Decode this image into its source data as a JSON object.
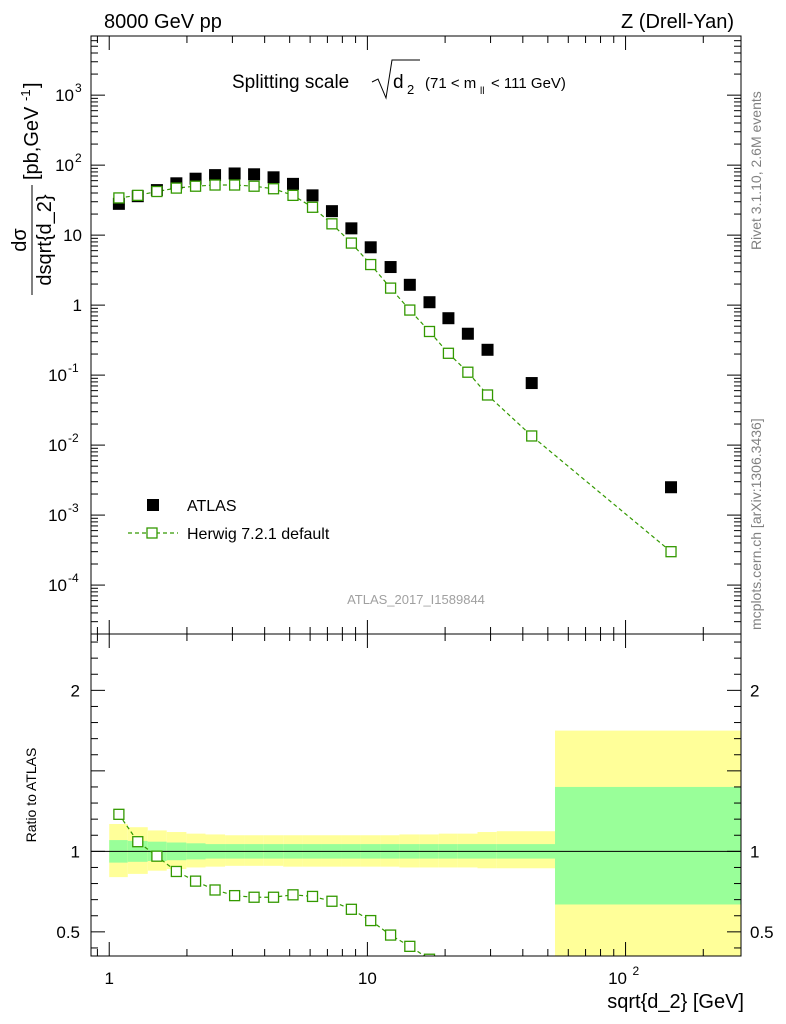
{
  "header": {
    "left": "8000 GeV pp",
    "right": "Z (Drell-Yan)"
  },
  "side_text": {
    "top": "Rivet 3.1.10,  2.6M events",
    "bottom": "mcplots.cern.ch [arXiv:1306.3436]"
  },
  "watermark": "ATLAS_2017_I1589844",
  "legend": {
    "data_label": "ATLAS",
    "mc_label": "Herwig 7.2.1 default"
  },
  "title": {
    "main": "Splitting scale",
    "sub": "2",
    "range_prefix": "(71 < m",
    "range_sub": "ll",
    "range_suffix": "< 111 GeV)"
  },
  "top_ylabel": {
    "num": "dσ",
    "den": "dsqrt{d_2}",
    "units": "[pb,GeV",
    "units_sup": "-1",
    "units_end": "]"
  },
  "bottom_ylabel": "Ratio to ATLAS",
  "xlabel": "sqrt{d_2} [GeV]",
  "colors": {
    "mc": "#339900",
    "band_inner": "#99ff99",
    "band_outer": "#ffff99"
  },
  "chart_data": [
    {
      "type": "scatter",
      "title": "Splitting scale √d2 (71 < mll < 111 GeV)",
      "xscale": "log",
      "yscale": "log",
      "xlim": [
        0.85,
        280
      ],
      "ylim": [
        2e-05,
        7000
      ],
      "x_ticks": [
        "1",
        "10",
        "10^2"
      ],
      "y_ticks": [
        "10^-4",
        "10^-3",
        "10^-2",
        "10^-1",
        "1",
        "10",
        "10^2",
        "10^3"
      ],
      "legend_position": "bottom-left",
      "series": [
        {
          "name": "ATLAS",
          "style": "black-square",
          "x": [
            1.09,
            1.29,
            1.53,
            1.82,
            2.16,
            2.57,
            3.06,
            3.64,
            4.33,
            5.15,
            6.13,
            7.29,
            8.67,
            10.3,
            12.3,
            14.6,
            17.4,
            20.6,
            24.5,
            29.2,
            43.3,
            150
          ],
          "y": [
            28,
            36,
            44,
            55,
            64,
            72,
            76,
            74,
            67,
            54,
            37,
            22,
            12.5,
            6.7,
            3.5,
            1.95,
            1.1,
            0.65,
            0.39,
            0.23,
            0.077,
            0.0025
          ]
        },
        {
          "name": "Herwig 7.2.1 default",
          "style": "green-open-square-dashed",
          "x": [
            1.09,
            1.29,
            1.53,
            1.82,
            2.16,
            2.57,
            3.06,
            3.64,
            4.33,
            5.15,
            6.13,
            7.29,
            8.67,
            10.3,
            12.3,
            14.6,
            17.4,
            20.6,
            24.5,
            29.2,
            43.3,
            150
          ],
          "y": [
            34,
            37,
            42,
            47,
            50,
            52,
            52,
            50,
            46,
            37,
            25,
            14.5,
            7.7,
            3.8,
            1.75,
            0.85,
            0.42,
            0.205,
            0.11,
            0.052,
            0.0135,
            0.0003
          ]
        }
      ]
    },
    {
      "type": "scatter",
      "ylabel": "Ratio to ATLAS",
      "xlabel": "sqrt{d_2} [GeV]",
      "xscale": "log",
      "xlim": [
        0.85,
        280
      ],
      "ylim": [
        0.35,
        2.35
      ],
      "y_ticks": [
        0.5,
        1,
        2
      ],
      "reference_line": 1,
      "bands": {
        "edges": [
          1.0,
          1.18,
          1.41,
          1.67,
          1.99,
          2.36,
          2.81,
          3.34,
          3.97,
          4.72,
          5.61,
          6.67,
          7.94,
          9.44,
          11.2,
          13.3,
          15.9,
          18.9,
          22.4,
          26.7,
          31.7,
          53.3,
          280
        ],
        "inner_low": [
          0.93,
          0.935,
          0.94,
          0.945,
          0.95,
          0.955,
          0.955,
          0.955,
          0.955,
          0.955,
          0.955,
          0.955,
          0.955,
          0.955,
          0.955,
          0.955,
          0.955,
          0.955,
          0.955,
          0.955,
          0.955,
          0.67
        ],
        "inner_high": [
          1.07,
          1.065,
          1.06,
          1.055,
          1.05,
          1.045,
          1.045,
          1.045,
          1.045,
          1.045,
          1.045,
          1.045,
          1.045,
          1.045,
          1.045,
          1.045,
          1.045,
          1.045,
          1.045,
          1.045,
          1.045,
          1.4
        ],
        "outer_low": [
          0.84,
          0.86,
          0.88,
          0.89,
          0.9,
          0.905,
          0.91,
          0.91,
          0.91,
          0.905,
          0.905,
          0.905,
          0.905,
          0.905,
          0.905,
          0.9,
          0.9,
          0.9,
          0.9,
          0.895,
          0.895,
          0.35
        ],
        "outer_high": [
          1.17,
          1.15,
          1.13,
          1.12,
          1.11,
          1.105,
          1.1,
          1.1,
          1.1,
          1.1,
          1.1,
          1.1,
          1.1,
          1.1,
          1.1,
          1.105,
          1.105,
          1.11,
          1.11,
          1.12,
          1.125,
          1.75
        ]
      },
      "series": [
        {
          "name": "Herwig 7.2.1 default",
          "style": "green-open-square-dashed",
          "x": [
            1.09,
            1.29,
            1.53,
            1.82,
            2.16,
            2.57,
            3.06,
            3.64,
            4.33,
            5.15,
            6.13,
            7.29,
            8.67,
            10.3,
            12.3,
            14.6,
            17.4
          ],
          "y": [
            1.23,
            1.06,
            0.97,
            0.875,
            0.815,
            0.76,
            0.725,
            0.715,
            0.715,
            0.73,
            0.72,
            0.69,
            0.64,
            0.57,
            0.48,
            0.41,
            0.33
          ]
        }
      ]
    }
  ]
}
